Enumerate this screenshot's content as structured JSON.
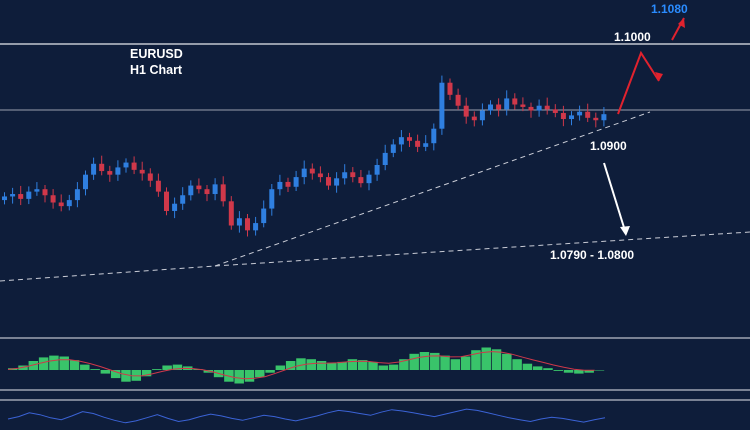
{
  "chart_data": {
    "type": "candlestick",
    "title": "EURUSD",
    "subtitle": "H1 Chart",
    "colors": {
      "background": "#0e1d3a",
      "bull_candle": "#2f7fe0",
      "bear_candle": "#d0384a",
      "text": "#ffffff",
      "accent_label": "#2a8cff",
      "macd_histogram": "#39c46a",
      "rsi_line": "#3b63d6",
      "guide_lines": "#c9ccd6"
    },
    "price_levels": [
      {
        "label": "1.1080",
        "value": 1.108,
        "color": "#2a8cff"
      },
      {
        "label": "1.1000",
        "value": 1.1,
        "color": "#ffffff"
      },
      {
        "label": "1.0900",
        "value": 1.09,
        "color": "#ffffff"
      },
      {
        "label": "1.0790 - 1.0800",
        "value": 1.0795,
        "color": "#ffffff"
      }
    ],
    "horizontal_lines": [
      1.1,
      1.0945
    ],
    "forecast_paths": [
      {
        "name": "bullish",
        "color": "#e0222e",
        "points": [
          [
            0,
            1.0942
          ],
          [
            1,
            1.1015
          ],
          [
            2,
            1.0985
          ],
          [
            3,
            1.104
          ]
        ]
      },
      {
        "name": "bearish",
        "color": "#ffffff",
        "points": [
          [
            0,
            1.0892
          ],
          [
            1,
            1.0805
          ]
        ]
      }
    ],
    "candles_close": [
      1.0874,
      1.0876,
      1.0872,
      1.0878,
      1.088,
      1.0875,
      1.0869,
      1.0866,
      1.0871,
      1.088,
      1.0892,
      1.0901,
      1.0895,
      1.0892,
      1.0898,
      1.0902,
      1.0896,
      1.0893,
      1.0887,
      1.0878,
      1.0862,
      1.0868,
      1.0875,
      1.0883,
      1.088,
      1.0876,
      1.0884,
      1.087,
      1.085,
      1.0856,
      1.0846,
      1.0852,
      1.0864,
      1.088,
      1.0886,
      1.0882,
      1.089,
      1.0897,
      1.0893,
      1.089,
      1.0883,
      1.0889,
      1.0894,
      1.089,
      1.0885,
      1.0892,
      1.09,
      1.091,
      1.0917,
      1.0923,
      1.092,
      1.0915,
      1.0918,
      1.093,
      1.0968,
      1.0958,
      1.0949,
      1.094,
      1.0937,
      1.0945,
      1.095,
      1.0946,
      1.0955,
      1.095,
      1.0948,
      1.0945,
      1.0949,
      1.0946,
      1.0943,
      1.0938,
      1.0941,
      1.0944,
      1.0939,
      1.0937,
      1.0942
    ]
  },
  "indicators": {
    "macd_histogram": [
      0.2,
      0.5,
      1.0,
      1.4,
      1.6,
      1.5,
      1.1,
      0.6,
      0.1,
      -0.4,
      -0.9,
      -1.3,
      -1.2,
      -0.7,
      0.1,
      0.5,
      0.6,
      0.4,
      0.1,
      -0.3,
      -0.8,
      -1.3,
      -1.5,
      -1.3,
      -0.8,
      -0.3,
      0.5,
      1.0,
      1.3,
      1.2,
      1.0,
      0.8,
      0.9,
      1.2,
      1.1,
      0.9,
      0.5,
      0.6,
      1.2,
      1.8,
      2.0,
      1.9,
      1.6,
      1.2,
      1.5,
      2.2,
      2.5,
      2.3,
      1.8,
      1.2,
      0.7,
      0.4,
      0.2,
      -0.1,
      -0.3,
      -0.4,
      -0.3,
      0.0
    ],
    "rsi": [
      48,
      52,
      58,
      55,
      50,
      47,
      53,
      60,
      57,
      51,
      46,
      42,
      45,
      50,
      55,
      49,
      44,
      47,
      52,
      56,
      53,
      49,
      46,
      50,
      54,
      52,
      48,
      45,
      49,
      53,
      58,
      62,
      60,
      57,
      54,
      59,
      63,
      61,
      58,
      55,
      52,
      56,
      60,
      64,
      62,
      58,
      54,
      50,
      47,
      44,
      48,
      51,
      49,
      46,
      43,
      47,
      50
    ]
  }
}
